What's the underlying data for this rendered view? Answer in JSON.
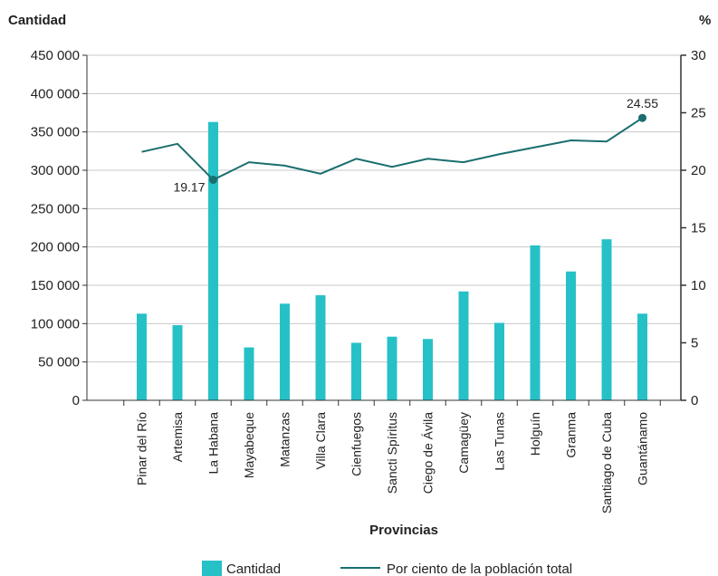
{
  "chart_data": {
    "type": "bar",
    "xlabel": "Provincias",
    "ylabel_left": "Cantidad",
    "ylabel_right": "%",
    "ylim_left": [
      0,
      450000
    ],
    "ylim_right": [
      0,
      30
    ],
    "y_ticks_left": [
      "0",
      "50 000",
      "100 000",
      "150 000",
      "200 000",
      "250 000",
      "300 000",
      "350 000",
      "400 000",
      "450 000"
    ],
    "y_ticks_right": [
      "0",
      "5",
      "10",
      "15",
      "20",
      "25",
      "30"
    ],
    "grid": true,
    "legend_position": "bottom",
    "categories": [
      "Pinar del Río",
      "Artemisa",
      "La Habana",
      "Mayabeque",
      "Matanzas",
      "Villa Clara",
      "Cienfuegos",
      "Sancti Spíritus",
      "Ciego de Ávila",
      "Camagüey",
      "Las Tunas",
      "Holguín",
      "Granma",
      "Santiago de Cuba",
      "Guantánamo"
    ],
    "series": [
      {
        "name": "Cantidad",
        "type": "bar",
        "axis": "left",
        "color": "#26c1c7",
        "values": [
          113000,
          98000,
          363000,
          69000,
          126000,
          137000,
          75000,
          83000,
          80000,
          142000,
          101000,
          202000,
          168000,
          210000,
          113000
        ]
      },
      {
        "name": "Por ciento de la población total",
        "type": "line",
        "axis": "right",
        "color": "#1a6e6e",
        "values": [
          21.6,
          22.3,
          19.17,
          20.7,
          20.4,
          19.7,
          21.0,
          20.3,
          21.0,
          20.7,
          21.4,
          22.0,
          22.6,
          22.5,
          24.55
        ]
      }
    ],
    "annotations": [
      {
        "category": "La Habana",
        "text": "19.17"
      },
      {
        "category": "Guantánamo",
        "text": "24.55"
      }
    ]
  }
}
